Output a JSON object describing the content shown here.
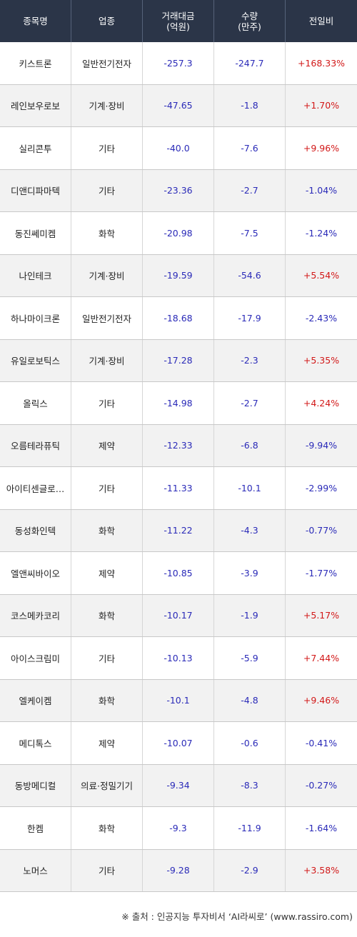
{
  "headers": {
    "name": "종목명",
    "sector": "업종",
    "trade_amount_line1": "거래대금",
    "trade_amount_line2": "(억원)",
    "volume_line1": "수량",
    "volume_line2": "(만주)",
    "change": "전일비"
  },
  "rows": [
    {
      "name": "키스트론",
      "sector": "일반전기전자",
      "amount": "-257.3",
      "volume": "-247.7",
      "change": "+168.33%",
      "dir": "up"
    },
    {
      "name": "레인보우로보",
      "sector": "기계·장비",
      "amount": "-47.65",
      "volume": "-1.8",
      "change": "+1.70%",
      "dir": "up"
    },
    {
      "name": "실리콘투",
      "sector": "기타",
      "amount": "-40.0",
      "volume": "-7.6",
      "change": "+9.96%",
      "dir": "up"
    },
    {
      "name": "디앤디파마텍",
      "sector": "기타",
      "amount": "-23.36",
      "volume": "-2.7",
      "change": "-1.04%",
      "dir": "down"
    },
    {
      "name": "동진쎄미켐",
      "sector": "화학",
      "amount": "-20.98",
      "volume": "-7.5",
      "change": "-1.24%",
      "dir": "down"
    },
    {
      "name": "나인테크",
      "sector": "기계·장비",
      "amount": "-19.59",
      "volume": "-54.6",
      "change": "+5.54%",
      "dir": "up"
    },
    {
      "name": "하나마이크론",
      "sector": "일반전기전자",
      "amount": "-18.68",
      "volume": "-17.9",
      "change": "-2.43%",
      "dir": "down"
    },
    {
      "name": "유일로보틱스",
      "sector": "기계·장비",
      "amount": "-17.28",
      "volume": "-2.3",
      "change": "+5.35%",
      "dir": "up"
    },
    {
      "name": "올릭스",
      "sector": "기타",
      "amount": "-14.98",
      "volume": "-2.7",
      "change": "+4.24%",
      "dir": "up"
    },
    {
      "name": "오름테라퓨틱",
      "sector": "제약",
      "amount": "-12.33",
      "volume": "-6.8",
      "change": "-9.94%",
      "dir": "down"
    },
    {
      "name": "아이티센글로…",
      "sector": "기타",
      "amount": "-11.33",
      "volume": "-10.1",
      "change": "-2.99%",
      "dir": "down"
    },
    {
      "name": "동성화인텍",
      "sector": "화학",
      "amount": "-11.22",
      "volume": "-4.3",
      "change": "-0.77%",
      "dir": "down"
    },
    {
      "name": "엘앤씨바이오",
      "sector": "제약",
      "amount": "-10.85",
      "volume": "-3.9",
      "change": "-1.77%",
      "dir": "down"
    },
    {
      "name": "코스메카코리",
      "sector": "화학",
      "amount": "-10.17",
      "volume": "-1.9",
      "change": "+5.17%",
      "dir": "up"
    },
    {
      "name": "아이스크림미",
      "sector": "기타",
      "amount": "-10.13",
      "volume": "-5.9",
      "change": "+7.44%",
      "dir": "up"
    },
    {
      "name": "엘케이켐",
      "sector": "화학",
      "amount": "-10.1",
      "volume": "-4.8",
      "change": "+9.46%",
      "dir": "up"
    },
    {
      "name": "메디톡스",
      "sector": "제약",
      "amount": "-10.07",
      "volume": "-0.6",
      "change": "-0.41%",
      "dir": "down"
    },
    {
      "name": "동방메디컬",
      "sector": "의료·정밀기기",
      "amount": "-9.34",
      "volume": "-8.3",
      "change": "-0.27%",
      "dir": "down"
    },
    {
      "name": "한켐",
      "sector": "화학",
      "amount": "-9.3",
      "volume": "-11.9",
      "change": "-1.64%",
      "dir": "down"
    },
    {
      "name": "노머스",
      "sector": "기타",
      "amount": "-9.28",
      "volume": "-2.9",
      "change": "+3.58%",
      "dir": "up"
    }
  ],
  "footer": "※ 출처 : 인공지능 투자비서 ‘AI라씨로’ (www.rassiro.com)",
  "colors": {
    "header_bg": "#2b3548",
    "up": "#d21818",
    "down": "#2a2ab8",
    "alt_row": "#f2f2f2"
  }
}
